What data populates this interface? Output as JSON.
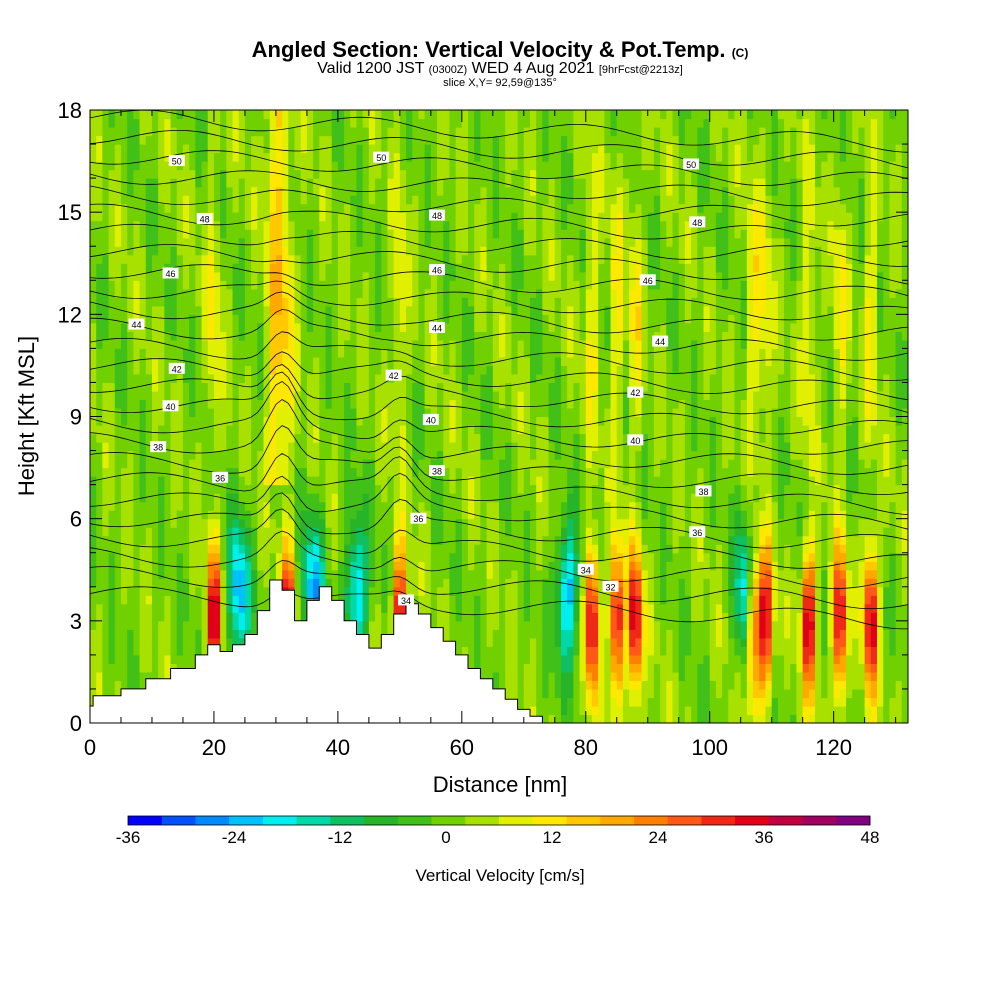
{
  "title": {
    "main": "Angled Section: Vertical Velocity & Pot.Temp.",
    "units": "(C)",
    "valid_prefix": "Valid 1200 JST",
    "valid_zulu": "(0300Z)",
    "valid_date": "WED 4 Aug 2021",
    "fcst": "[9hrFcst@2213z]",
    "slice": "slice X,Y= 92,59@135°"
  },
  "chart_data": {
    "type": "heatmap",
    "xlabel": "Distance [nm]",
    "ylabel": "Height [Kft MSL]",
    "xlim": [
      0,
      132
    ],
    "ylim": [
      0,
      18
    ],
    "x_ticks": [
      "0",
      "20",
      "40",
      "60",
      "80",
      "100",
      "120"
    ],
    "y_ticks": [
      "0",
      "3",
      "6",
      "9",
      "12",
      "15",
      "18"
    ],
    "colorbar": {
      "label": "Vertical Velocity [cm/s]",
      "range": [
        -36,
        48
      ],
      "step": 4,
      "ticks": [
        "-36",
        "-24",
        "-12",
        "0",
        "12",
        "24",
        "36",
        "48"
      ],
      "colors": [
        "#0000ff",
        "#0050ff",
        "#0088ff",
        "#00c0ff",
        "#00eeee",
        "#00d8a8",
        "#10c060",
        "#28b428",
        "#40c018",
        "#70d000",
        "#a8e000",
        "#e0f000",
        "#ffe800",
        "#ffc800",
        "#ffa800",
        "#ff8000",
        "#ff5818",
        "#f02818",
        "#e00018",
        "#c00040",
        "#a00060",
        "#800080"
      ]
    },
    "features": {
      "updraft_columns_x": [
        20,
        32,
        50,
        81,
        85,
        88,
        107,
        109,
        116,
        121,
        126
      ],
      "downdraft_zones_x": [
        24,
        36,
        43,
        77,
        106
      ]
    },
    "terrain_steps": [
      [
        0,
        0.5
      ],
      [
        0.5,
        0.8
      ],
      [
        5,
        1.0
      ],
      [
        9,
        1.3
      ],
      [
        13,
        1.6
      ],
      [
        17,
        2.0
      ],
      [
        19,
        2.3
      ],
      [
        21,
        2.1
      ],
      [
        23,
        2.3
      ],
      [
        25,
        2.6
      ],
      [
        27,
        3.3
      ],
      [
        29,
        4.2
      ],
      [
        31,
        3.9
      ],
      [
        33,
        3.0
      ],
      [
        35,
        3.6
      ],
      [
        37,
        4.0
      ],
      [
        39,
        3.6
      ],
      [
        41,
        3.0
      ],
      [
        43,
        2.6
      ],
      [
        45,
        2.2
      ],
      [
        47,
        2.6
      ],
      [
        49,
        3.2
      ],
      [
        51,
        3.5
      ],
      [
        53,
        3.2
      ],
      [
        55,
        2.8
      ],
      [
        57,
        2.4
      ],
      [
        59,
        2.0
      ],
      [
        61,
        1.6
      ],
      [
        63,
        1.3
      ],
      [
        65,
        1.0
      ],
      [
        67,
        0.7
      ],
      [
        69,
        0.4
      ],
      [
        71,
        0.2
      ]
    ],
    "isentrope_labels": [
      {
        "x": 14,
        "y": 16.5,
        "text": "50"
      },
      {
        "x": 47,
        "y": 16.6,
        "text": "50"
      },
      {
        "x": 97,
        "y": 16.4,
        "text": "50"
      },
      {
        "x": 18.5,
        "y": 14.8,
        "text": "48"
      },
      {
        "x": 56,
        "y": 14.9,
        "text": "48"
      },
      {
        "x": 98,
        "y": 14.7,
        "text": "48"
      },
      {
        "x": 13,
        "y": 13.2,
        "text": "46"
      },
      {
        "x": 56,
        "y": 13.3,
        "text": "46"
      },
      {
        "x": 90,
        "y": 13.0,
        "text": "46"
      },
      {
        "x": 7.5,
        "y": 11.7,
        "text": "44"
      },
      {
        "x": 56,
        "y": 11.6,
        "text": "44"
      },
      {
        "x": 92,
        "y": 11.2,
        "text": "44"
      },
      {
        "x": 14,
        "y": 10.4,
        "text": "42"
      },
      {
        "x": 49,
        "y": 10.2,
        "text": "42"
      },
      {
        "x": 88,
        "y": 9.7,
        "text": "42"
      },
      {
        "x": 13,
        "y": 9.3,
        "text": "40"
      },
      {
        "x": 55,
        "y": 8.9,
        "text": "40"
      },
      {
        "x": 88,
        "y": 8.3,
        "text": "40"
      },
      {
        "x": 11,
        "y": 8.1,
        "text": "38"
      },
      {
        "x": 56,
        "y": 7.4,
        "text": "38"
      },
      {
        "x": 99,
        "y": 6.8,
        "text": "38"
      },
      {
        "x": 21,
        "y": 7.2,
        "text": "36"
      },
      {
        "x": 53,
        "y": 6.0,
        "text": "36"
      },
      {
        "x": 98,
        "y": 5.6,
        "text": "36"
      },
      {
        "x": 80,
        "y": 4.5,
        "text": "34"
      },
      {
        "x": 51,
        "y": 3.6,
        "text": "34"
      },
      {
        "x": 84,
        "y": 4.0,
        "text": "32"
      }
    ]
  }
}
